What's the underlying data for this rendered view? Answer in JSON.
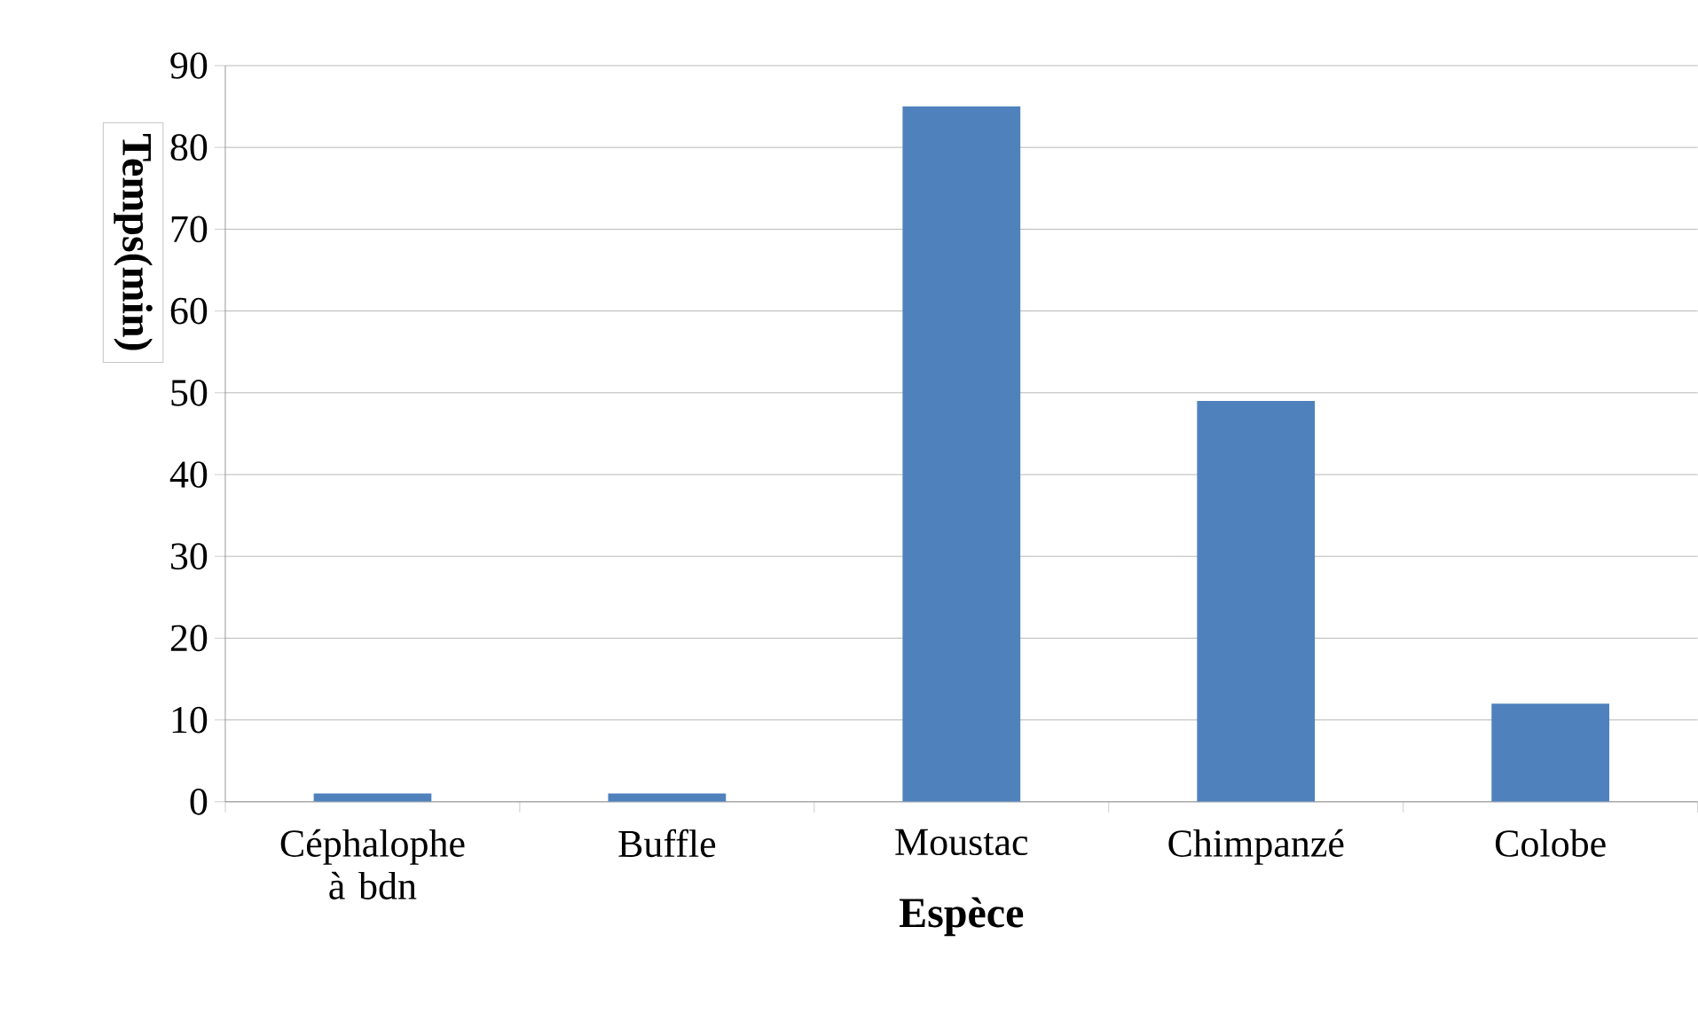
{
  "chart_data": {
    "type": "bar",
    "ylabel": "Temps(min)",
    "xlabel": "Espèce",
    "categories": [
      "Céphalophe à bdn",
      "Buffle",
      "Moustac",
      "Chimpanzé",
      "Colobe"
    ],
    "values": [
      1,
      1,
      85,
      49,
      12
    ],
    "color": "#4f81bd",
    "ylim": [
      0,
      90
    ],
    "yticks": [
      0,
      10,
      20,
      30,
      40,
      50,
      60,
      70,
      80,
      90
    ],
    "grid": "y"
  }
}
